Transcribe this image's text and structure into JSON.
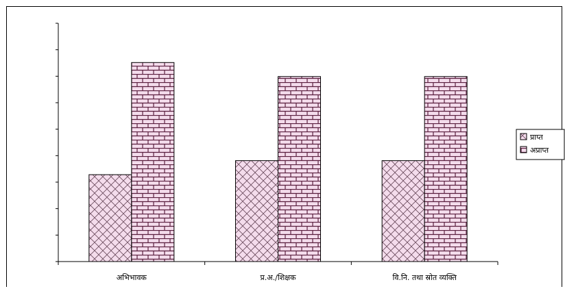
{
  "chart_data": {
    "type": "bar",
    "title": "",
    "xlabel": "",
    "ylabel": "",
    "categories": [
      "अभिभावक",
      "प्र.अ./शिक्षक",
      "वि.नि. तथा स्रोत व्यक्ति"
    ],
    "series": [
      {
        "name": "प्राप्त",
        "values": [
          31,
          36,
          36
        ],
        "color": "#f3d9ea",
        "pattern": "crosshatch"
      },
      {
        "name": "अप्राप्त",
        "values": [
          71,
          66,
          66
        ],
        "color": "#f3d9ea",
        "pattern": "brick"
      }
    ],
    "ylim": [
      0,
      85
    ],
    "y_tick_count": 9,
    "y_tick_labels": false,
    "grid": false,
    "legend_position": "right"
  }
}
